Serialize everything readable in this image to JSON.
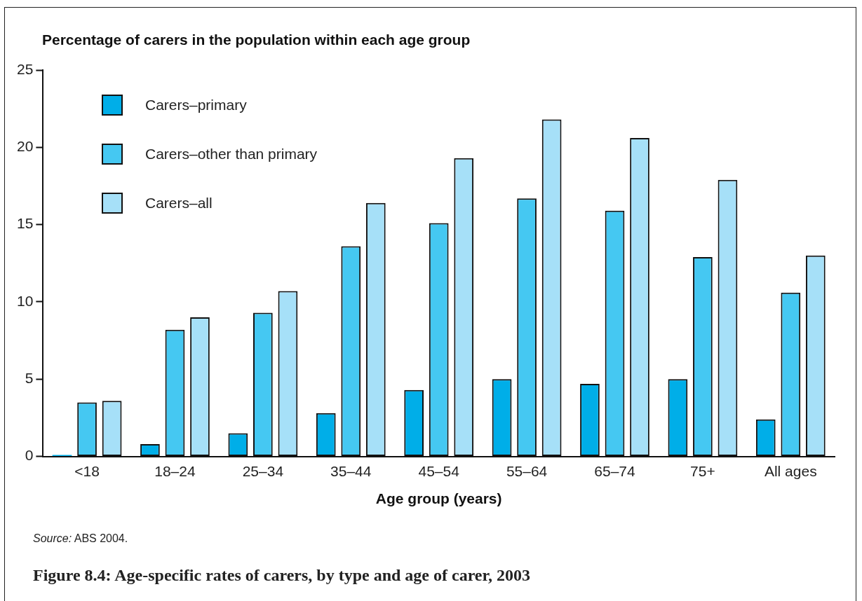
{
  "chart_data": {
    "type": "bar",
    "title": "Figure 8.4: Age-specific rates of carers, by type and age of carer, 2003",
    "ylabel": "Percentage of carers in the population within each age group",
    "xlabel": "Age group (years)",
    "annotations": [
      "Source: ABS 2004."
    ],
    "categories": [
      "<18",
      "18–24",
      "25–34",
      "35–44",
      "45–54",
      "55–64",
      "65–74",
      "75+",
      "All ages"
    ],
    "series": [
      {
        "name": "Carers–primary",
        "color": "#00aee8",
        "values": [
          0.1,
          0.8,
          1.5,
          2.8,
          4.3,
          5.0,
          4.7,
          5.0,
          2.4
        ]
      },
      {
        "name": "Carers–other than primary",
        "color": "#45c8f2",
        "values": [
          3.5,
          8.2,
          9.3,
          13.6,
          15.1,
          16.7,
          15.9,
          12.9,
          10.6
        ]
      },
      {
        "name": "Carers–all",
        "color": "#a6e0f8",
        "values": [
          3.6,
          9.0,
          10.7,
          16.4,
          19.3,
          21.8,
          20.6,
          17.9,
          13.0
        ]
      }
    ],
    "ylim": [
      0,
      25
    ],
    "yticks": [
      0,
      5,
      10,
      15,
      20,
      25
    ],
    "grid": false,
    "legend": "top left"
  }
}
